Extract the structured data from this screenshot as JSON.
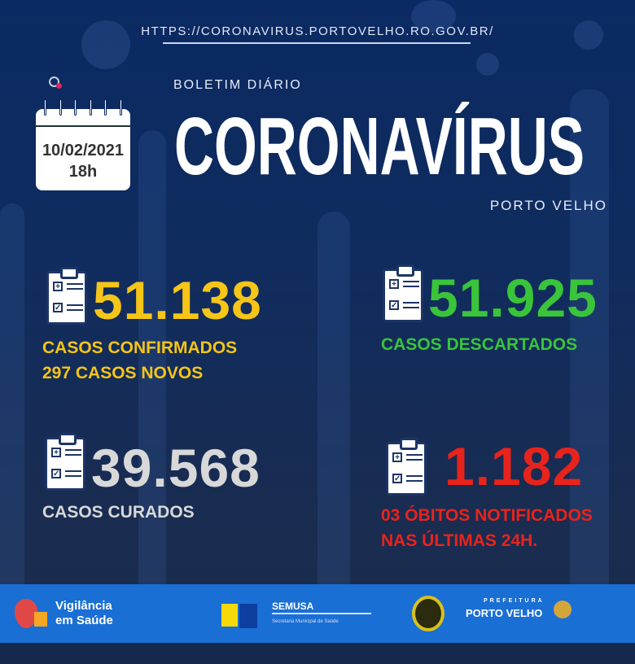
{
  "url": "HTTPS://CORONAVIRUS.PORTOVELHO.RO.GOV.BR/",
  "header": {
    "subtitle": "BOLETIM DIÁRIO",
    "title": "CORONAVÍRUS",
    "location": "PORTO VELHO"
  },
  "calendar": {
    "date": "10/02/2021",
    "time": "18h"
  },
  "stats": {
    "confirmed": {
      "value": "51.138",
      "label": "CASOS CONFIRMADOS",
      "sub": "297 CASOS NOVOS",
      "color": "#f5c518"
    },
    "discarded": {
      "value": "51.925",
      "label": "CASOS DESCARTADOS",
      "color": "#39c43a"
    },
    "recovered": {
      "value": "39.568",
      "label": "CASOS CURADOS",
      "color": "#d8d8d8"
    },
    "deaths": {
      "value": "1.182",
      "label": "03 ÓBITOS NOTIFICADOS",
      "sub": "NAS ÚLTIMAS 24H.",
      "color": "#e8231c"
    }
  },
  "footer": {
    "vigilancia": [
      "Vigilância",
      "em Saúde"
    ],
    "semusa": "SEMUSA",
    "semusa_sub": "Secretaria Municipal de Saúde",
    "prefeitura": "PREFEITURA",
    "porto_velho": "PORTO VELHO"
  }
}
